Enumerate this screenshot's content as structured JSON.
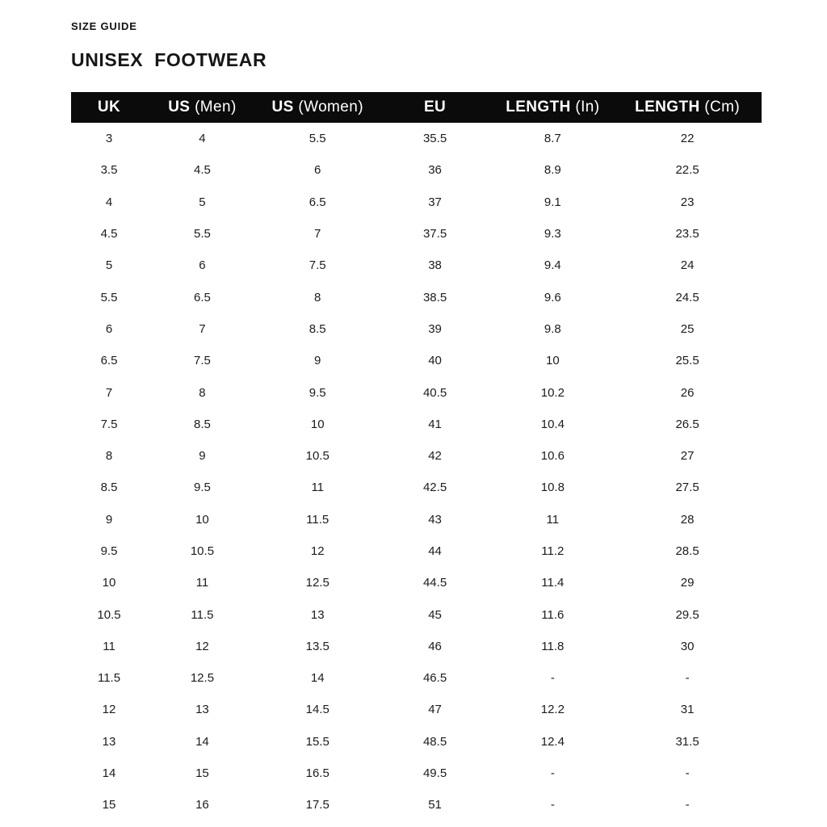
{
  "page": {
    "eyebrow": "SIZE GUIDE",
    "title": "UNISEX  FOOTWEAR"
  },
  "colors": {
    "header_bg": "#0b0b0b",
    "header_text": "#ffffff",
    "body_text": "#1c1c1c",
    "background": "#ffffff"
  },
  "table": {
    "columns": [
      {
        "bold": "UK",
        "light": ""
      },
      {
        "bold": "US",
        "light": " (Men)"
      },
      {
        "bold": "US",
        "light": " (Women)"
      },
      {
        "bold": "EU",
        "light": ""
      },
      {
        "bold": "LENGTH",
        "light": " (In)"
      },
      {
        "bold": "LENGTH",
        "light": " (Cm)"
      }
    ],
    "rows": [
      [
        "3",
        "4",
        "5.5",
        "35.5",
        "8.7",
        "22"
      ],
      [
        "3.5",
        "4.5",
        "6",
        "36",
        "8.9",
        "22.5"
      ],
      [
        "4",
        "5",
        "6.5",
        "37",
        "9.1",
        "23"
      ],
      [
        "4.5",
        "5.5",
        "7",
        "37.5",
        "9.3",
        "23.5"
      ],
      [
        "5",
        "6",
        "7.5",
        "38",
        "9.4",
        "24"
      ],
      [
        "5.5",
        "6.5",
        "8",
        "38.5",
        "9.6",
        "24.5"
      ],
      [
        "6",
        "7",
        "8.5",
        "39",
        "9.8",
        "25"
      ],
      [
        "6.5",
        "7.5",
        "9",
        "40",
        "10",
        "25.5"
      ],
      [
        "7",
        "8",
        "9.5",
        "40.5",
        "10.2",
        "26"
      ],
      [
        "7.5",
        "8.5",
        "10",
        "41",
        "10.4",
        "26.5"
      ],
      [
        "8",
        "9",
        "10.5",
        "42",
        "10.6",
        "27"
      ],
      [
        "8.5",
        "9.5",
        "11",
        "42.5",
        "10.8",
        "27.5"
      ],
      [
        "9",
        "10",
        "11.5",
        "43",
        "11",
        "28"
      ],
      [
        "9.5",
        "10.5",
        "12",
        "44",
        "11.2",
        "28.5"
      ],
      [
        "10",
        "11",
        "12.5",
        "44.5",
        "11.4",
        "29"
      ],
      [
        "10.5",
        "11.5",
        "13",
        "45",
        "11.6",
        "29.5"
      ],
      [
        "11",
        "12",
        "13.5",
        "46",
        "11.8",
        "30"
      ],
      [
        "11.5",
        "12.5",
        "14",
        "46.5",
        "-",
        "-"
      ],
      [
        "12",
        "13",
        "14.5",
        "47",
        "12.2",
        "31"
      ],
      [
        "13",
        "14",
        "15.5",
        "48.5",
        "12.4",
        "31.5"
      ],
      [
        "14",
        "15",
        "16.5",
        "49.5",
        "-",
        "-"
      ],
      [
        "15",
        "16",
        "17.5",
        "51",
        "-",
        "-"
      ]
    ]
  }
}
